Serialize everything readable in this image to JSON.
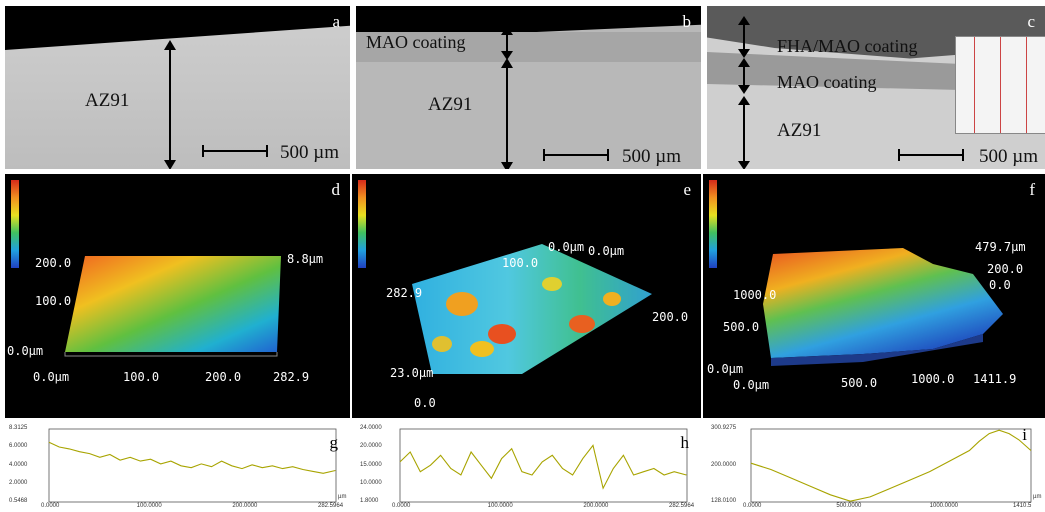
{
  "figure": {
    "panels": {
      "a": {
        "letter": "a",
        "material": "AZ91",
        "scale": "500 µm"
      },
      "b": {
        "letter": "b",
        "coating": "MAO coating",
        "material": "AZ91",
        "scale": "500 µm"
      },
      "c": {
        "letter": "c",
        "top_coating": "FHA/MAO coating",
        "coating": "MAO coating",
        "material": "AZ91",
        "scale": "500 µm"
      },
      "d": {
        "letter": "d",
        "y_top": "200.0",
        "y_mid": "100.0",
        "origin": "0.0µm",
        "z_top": "8.8µm",
        "x0": "0.0µm",
        "x1": "100.0",
        "x2": "200.0",
        "x3": "282.9"
      },
      "e": {
        "letter": "e",
        "top_left": "0.0µm",
        "top_mid": "100.0",
        "top_right": "0.0µm",
        "left_val": "282.9",
        "right_val": "200.0",
        "z_top": "23.0µm",
        "z_base": "0.0"
      },
      "f": {
        "letter": "f",
        "z_top": "479.7µm",
        "z_mid": "200.0",
        "z_base": "0.0",
        "y_top": "1000.0",
        "y_mid": "500.0",
        "origin": "0.0µm",
        "x0": "0.0µm",
        "x1": "500.0",
        "x2": "1000.0",
        "x3": "1411.9"
      }
    },
    "colors": {
      "profile_line": "#a8a400",
      "black": "#000000"
    }
  },
  "chart_data": [
    {
      "type": "line",
      "panel": "g",
      "y_ticks": [
        "8.3125",
        "6.0000",
        "4.0000",
        "2.0000",
        "0.5468"
      ],
      "x_ticks": [
        "0.0000",
        "100.0000",
        "200.0000",
        "282.5964"
      ],
      "x_unit": "µm",
      "ylim": [
        0.5468,
        8.3125
      ],
      "xlim": [
        0,
        282.5964
      ],
      "x": [
        0,
        10,
        20,
        30,
        40,
        50,
        60,
        70,
        80,
        90,
        100,
        110,
        120,
        130,
        140,
        150,
        160,
        170,
        180,
        190,
        200,
        210,
        220,
        230,
        240,
        250,
        260,
        270,
        282
      ],
      "values": [
        6.9,
        6.4,
        6.2,
        5.9,
        5.7,
        5.3,
        5.6,
        5.0,
        5.3,
        4.9,
        5.1,
        4.6,
        4.9,
        4.4,
        4.2,
        4.6,
        4.3,
        4.9,
        4.4,
        4.1,
        4.5,
        4.2,
        4.4,
        4.1,
        4.3,
        4.0,
        3.8,
        3.6,
        3.9
      ]
    },
    {
      "type": "line",
      "panel": "h",
      "y_ticks": [
        "24.0000",
        "20.0000",
        "15.0000",
        "10.0000",
        "1.8000"
      ],
      "x_ticks": [
        "0.0000",
        "100.0000",
        "200.0000",
        "282.5964"
      ],
      "ylim": [
        1.8,
        24.0
      ],
      "xlim": [
        0,
        282.5964
      ],
      "x": [
        0,
        10,
        20,
        30,
        40,
        50,
        60,
        70,
        80,
        90,
        100,
        110,
        120,
        130,
        140,
        150,
        160,
        170,
        180,
        190,
        200,
        210,
        220,
        230,
        240,
        250,
        260,
        270,
        282
      ],
      "values": [
        14,
        17,
        11,
        13,
        16,
        12,
        10,
        17,
        13,
        9,
        15,
        18,
        11,
        10,
        14,
        16,
        12,
        10,
        15,
        19,
        6,
        12,
        16,
        10,
        11,
        12,
        10,
        11,
        10
      ]
    },
    {
      "type": "line",
      "panel": "i",
      "y_ticks": [
        "300.9275",
        "200.0000",
        "128.0100"
      ],
      "x_ticks": [
        "0.0000",
        "500.0000",
        "1000.0000",
        "1410.5"
      ],
      "x_unit": "µm",
      "ylim": [
        128.01,
        300.9275
      ],
      "xlim": [
        0,
        1410.5
      ],
      "x": [
        0,
        100,
        200,
        300,
        400,
        500,
        600,
        700,
        800,
        900,
        1000,
        1100,
        1150,
        1200,
        1250,
        1300,
        1350,
        1410
      ],
      "values": [
        220,
        205,
        185,
        165,
        145,
        130,
        140,
        160,
        180,
        200,
        225,
        250,
        272,
        290,
        298,
        290,
        275,
        250
      ]
    }
  ]
}
